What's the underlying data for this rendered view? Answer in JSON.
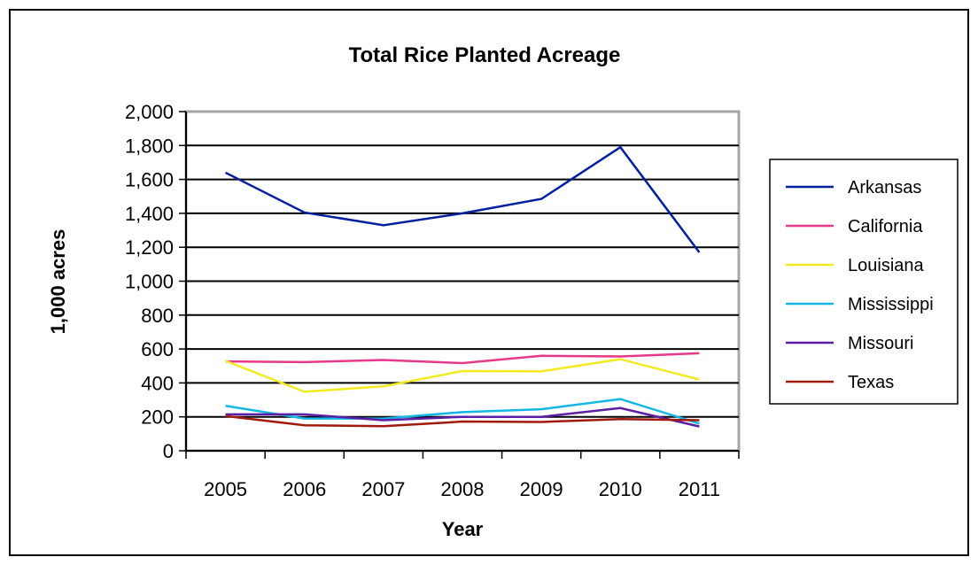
{
  "chart_data": {
    "type": "line",
    "title": "Total Rice Planted Acreage",
    "xlabel": "Year",
    "ylabel": "1,000 acres",
    "categories": [
      "2005",
      "2006",
      "2007",
      "2008",
      "2009",
      "2010",
      "2011"
    ],
    "ylim": [
      0,
      2000
    ],
    "yticks": [
      0,
      200,
      400,
      600,
      800,
      1000,
      1200,
      1400,
      1600,
      1800,
      2000
    ],
    "ytick_labels": [
      "0",
      "200",
      "400",
      "600",
      "800",
      "1,000",
      "1,200",
      "1,400",
      "1,600",
      "1,800",
      "2,000"
    ],
    "grid": "horizontal",
    "legend_position": "right",
    "series": [
      {
        "name": "Arkansas",
        "color": "#00209f",
        "values": [
          1640,
          1405,
          1330,
          1400,
          1485,
          1790,
          1170
        ]
      },
      {
        "name": "California",
        "color": "#e8388a",
        "values": [
          527,
          523,
          535,
          517,
          560,
          556,
          575
        ]
      },
      {
        "name": "Louisiana",
        "color": "#f2ea1e",
        "values": [
          530,
          348,
          380,
          470,
          468,
          540,
          420
        ]
      },
      {
        "name": "Mississippi",
        "color": "#12b7e6",
        "values": [
          265,
          190,
          190,
          228,
          245,
          305,
          160
        ]
      },
      {
        "name": "Missouri",
        "color": "#5a1fa6",
        "values": [
          215,
          215,
          180,
          200,
          200,
          252,
          143
        ]
      },
      {
        "name": "Texas",
        "color": "#a11a0c",
        "values": [
          205,
          150,
          145,
          172,
          170,
          187,
          180
        ]
      }
    ]
  }
}
